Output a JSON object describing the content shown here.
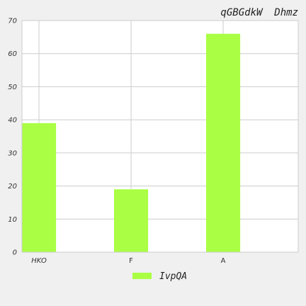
{
  "chart_data": {
    "type": "bar",
    "title": "qGBGdkW  Dhmz",
    "xlabel": "",
    "ylabel": "",
    "categories": [
      "HKO",
      "F",
      "A"
    ],
    "series": [
      {
        "name": "IvpQA",
        "values": [
          39,
          19,
          66
        ],
        "color": "#aaff44"
      }
    ],
    "ylim": [
      0,
      70
    ],
    "yticks": [
      0,
      10,
      20,
      30,
      40,
      50,
      60,
      70
    ],
    "grid": true,
    "legend_position": "bottom-center"
  },
  "colors": {
    "background": "#f0f0f0",
    "plot_background": "#ffffff",
    "grid": "#cccccc",
    "bar": "#aaff44"
  }
}
